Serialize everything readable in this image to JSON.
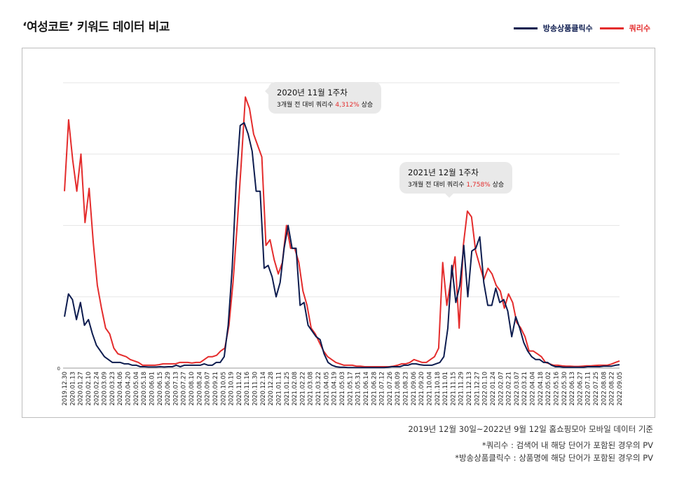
{
  "title": "‘여성코트’ 키워드 데이터 비교",
  "legend": [
    {
      "label": "방송상품클릭수",
      "color": "#0d1c4f"
    },
    {
      "label": "쿼리수",
      "color": "#e42c2c"
    }
  ],
  "callouts": [
    {
      "title": "2020년 11월 1주차",
      "prefix": "3개월 전 대비 쿼리수 ",
      "pct": "4,312%",
      "suffix": " 상승"
    },
    {
      "title": "2021년 12월 1주차",
      "prefix": "3개월 전 대비 쿼리수 ",
      "pct": "1,758%",
      "suffix": " 상승"
    }
  ],
  "notes": [
    "2019년 12월 30일~2022년 9월 12일 홈쇼핑모아 모바일 데이터 기준",
    "*쿼리수 : 검색어 내 해당 단어가 포함된 경우의 PV",
    "*방송상품클릭수 : 상품명에 해당 단어가 포함된 경우의 PV"
  ],
  "chart_data": {
    "type": "line",
    "ylim": [
      0,
      100
    ],
    "y_tick_labels": [
      "0"
    ],
    "grid": "horizontal",
    "legend_position": "top-right",
    "x_tick_labels": [
      "2019.12.30",
      "2020.01.13",
      "2020.01.27",
      "2020.02.10",
      "2020.02.24",
      "2020.03.09",
      "2020.03.23",
      "2020.04.06",
      "2020.04.20",
      "2020.05.04",
      "2020.05.18",
      "2020.06.01",
      "2020.06.15",
      "2020.06.29",
      "2020.07.13",
      "2020.07.27",
      "2020.08.10",
      "2020.08.24",
      "2020.09.07",
      "2020.09.21",
      "2020.10.05",
      "2020.10.19",
      "2020.11.02",
      "2020.11.16",
      "2020.11.30",
      "2020.12.14",
      "2020.12.28",
      "2021.01.11",
      "2021.01.25",
      "2021.02.08",
      "2021.02.22",
      "2021.03.08",
      "2021.03.22",
      "2021.04.05",
      "2021.04.19",
      "2021.05.03",
      "2021.05.17",
      "2021.05.31",
      "2021.06.14",
      "2021.06.28",
      "2021.07.12",
      "2021.07.26",
      "2021.08.09",
      "2021.08.23",
      "2021.09.06",
      "2021.09.20",
      "2021.10.04",
      "2021.10.18",
      "2021.11.01",
      "2021.11.15",
      "2021.11.29",
      "2021.12.13",
      "2021.12.27",
      "2022.01.10",
      "2022.01.24",
      "2022.02.07",
      "2022.02.21",
      "2022.03.07",
      "2022.03.21",
      "2022.04.04",
      "2022.04.18",
      "2022.05.02",
      "2022.05.16",
      "2022.05.30",
      "2022.06.13",
      "2022.06.27",
      "2022.07.11",
      "2022.07.25",
      "2022.08.08",
      "2022.08.22",
      "2022.09.05"
    ],
    "series": [
      {
        "name": "방송상품클릭수",
        "color": "#0d1c4f",
        "values": [
          18,
          26,
          24,
          17,
          23,
          15,
          17,
          12,
          8,
          6,
          4,
          3,
          2,
          2,
          2,
          1.5,
          1.5,
          1,
          1,
          0.5,
          0.5,
          0.4,
          0.4,
          0.4,
          0.5,
          0.4,
          0.5,
          0.5,
          1,
          0.5,
          1,
          1,
          1,
          1,
          1,
          1.5,
          1,
          1,
          2,
          2,
          4,
          15,
          35,
          65,
          85,
          86,
          82,
          76,
          62,
          62,
          35,
          36,
          32,
          25,
          30,
          42,
          50,
          42,
          42,
          22,
          23,
          15,
          13,
          11,
          10,
          5,
          2,
          1,
          0.5,
          0.3,
          0.3,
          0.2,
          0.2,
          0.2,
          0.2,
          0.2,
          0.2,
          0.2,
          0.2,
          0.2,
          0.2,
          0.3,
          0.5,
          0.5,
          0.5,
          1,
          1,
          1.5,
          1.5,
          1.2,
          1,
          1,
          1,
          1.5,
          2,
          4,
          14,
          36,
          23,
          29,
          43,
          25,
          41,
          42,
          46,
          30,
          22,
          22,
          28,
          23,
          24,
          20,
          11,
          18,
          14,
          9,
          6,
          4,
          3,
          3,
          2,
          2,
          1,
          0.5,
          0.5,
          0.3,
          0.3,
          0.3,
          0.3,
          0.3,
          0.3,
          0.5,
          0.5,
          0.5,
          0.5,
          0.7,
          0.7,
          0.7,
          1,
          1.2
        ],
        "sample_rate": "weekly"
      },
      {
        "name": "쿼리수",
        "color": "#e42c2c",
        "values": [
          62,
          87,
          73,
          62,
          75,
          51,
          63,
          44,
          29,
          21,
          14,
          12,
          7,
          5,
          4.5,
          4,
          3,
          2.5,
          2,
          1,
          1,
          1,
          1,
          1.2,
          1.5,
          1.5,
          1.5,
          1.5,
          2,
          2,
          2,
          1.8,
          2,
          2,
          3,
          4,
          4,
          4.5,
          6,
          7,
          15,
          30,
          50,
          72,
          95,
          91,
          82,
          78,
          74,
          43,
          45,
          38,
          33,
          37,
          50,
          42,
          42,
          37,
          27,
          22,
          14,
          12,
          9,
          6,
          4,
          3,
          2,
          1.5,
          1,
          1,
          1,
          0.7,
          0.7,
          0.5,
          0.5,
          0.5,
          0.5,
          0.5,
          0.5,
          0.5,
          0.7,
          1,
          1.5,
          1.5,
          2,
          3,
          2.5,
          2,
          2,
          3,
          4,
          7,
          37,
          22,
          31,
          39,
          14,
          43,
          55,
          53,
          41,
          36,
          31,
          35,
          33,
          29,
          27,
          21,
          26,
          23,
          16,
          14,
          11,
          6,
          6,
          5,
          4,
          2,
          1.5,
          1,
          1,
          0.8,
          0.7,
          0.7,
          0.6,
          0.6,
          0.7,
          0.8,
          0.8,
          0.9,
          1,
          1,
          1,
          1.4,
          2,
          2.5
        ],
        "sample_rate": "weekly"
      }
    ]
  }
}
